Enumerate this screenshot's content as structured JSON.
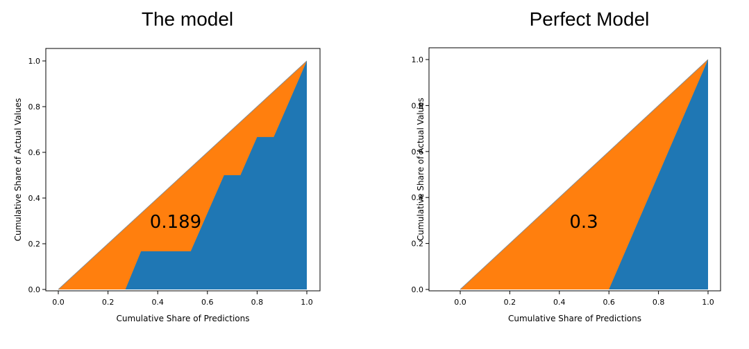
{
  "chart_data": [
    {
      "type": "area",
      "title": "The model",
      "xlabel": "Cumulative Share of Predictions",
      "ylabel": "Cumulative Share of Actual Values",
      "xlim": [
        0.0,
        1.0
      ],
      "ylim": [
        0.0,
        1.0
      ],
      "xticks": [
        "0.0",
        "0.2",
        "0.4",
        "0.6",
        "0.8",
        "1.0"
      ],
      "yticks": [
        "0.0",
        "0.2",
        "0.4",
        "0.6",
        "0.8",
        "1.0"
      ],
      "annotation": "0.189",
      "diagonal": {
        "x": [
          0.0,
          1.0
        ],
        "y": [
          0.0,
          1.0
        ]
      },
      "series": [
        {
          "color": "#ff7f0e",
          "x": [
            0.0,
            1.0
          ],
          "y": [
            0.0,
            1.0
          ]
        },
        {
          "color": "#1f77b4",
          "x": [
            0.27,
            0.333,
            0.533,
            0.667,
            0.733,
            0.8,
            0.867,
            1.0
          ],
          "y": [
            0.0,
            0.167,
            0.167,
            0.5,
            0.5,
            0.667,
            0.667,
            1.0
          ]
        }
      ],
      "grid": false
    },
    {
      "type": "area",
      "title": "Perfect Model",
      "xlabel": "Cumulative Share of Predictions",
      "ylabel": "Cumulative Share of Actual Values",
      "xlim": [
        0.0,
        1.0
      ],
      "ylim": [
        0.0,
        1.0
      ],
      "xticks": [
        "0.0",
        "0.2",
        "0.4",
        "0.6",
        "0.8",
        "1.0"
      ],
      "yticks": [
        "0.0",
        "0.2",
        "0.4",
        "0.6",
        "0.8",
        "1.0"
      ],
      "annotation": "0.3",
      "diagonal": {
        "x": [
          0.0,
          1.0
        ],
        "y": [
          0.0,
          1.0
        ]
      },
      "series": [
        {
          "color": "#ff7f0e",
          "x": [
            0.0,
            1.0
          ],
          "y": [
            0.0,
            1.0
          ]
        },
        {
          "color": "#1f77b4",
          "x": [
            0.6,
            1.0
          ],
          "y": [
            0.0,
            1.0
          ]
        }
      ],
      "grid": false
    }
  ]
}
